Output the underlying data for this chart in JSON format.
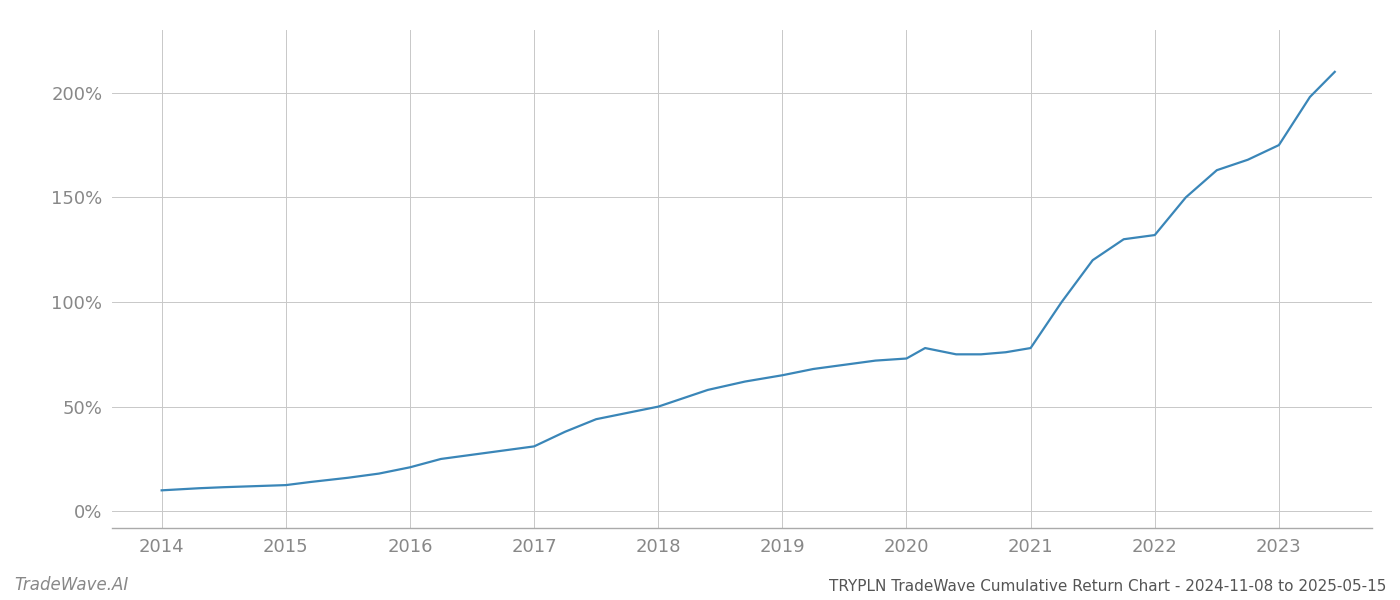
{
  "title": "TRYPLN TradeWave Cumulative Return Chart - 2024-11-08 to 2025-05-15",
  "watermark": "TradeWave.AI",
  "line_color": "#3a86b8",
  "background_color": "#ffffff",
  "grid_color": "#c8c8c8",
  "x_years": [
    2014,
    2015,
    2016,
    2017,
    2018,
    2019,
    2020,
    2021,
    2022,
    2023
  ],
  "x_data": [
    2014.0,
    2014.15,
    2014.3,
    2014.5,
    2014.75,
    2015.0,
    2015.2,
    2015.5,
    2015.75,
    2016.0,
    2016.25,
    2016.5,
    2016.75,
    2017.0,
    2017.25,
    2017.5,
    2017.75,
    2018.0,
    2018.2,
    2018.4,
    2018.7,
    2019.0,
    2019.25,
    2019.5,
    2019.75,
    2020.0,
    2020.15,
    2020.4,
    2020.6,
    2020.8,
    2021.0,
    2021.25,
    2021.5,
    2021.75,
    2022.0,
    2022.25,
    2022.5,
    2022.75,
    2023.0,
    2023.25,
    2023.45
  ],
  "y_data": [
    10,
    10.5,
    11,
    11.5,
    12,
    12.5,
    14,
    16,
    18,
    21,
    25,
    27,
    29,
    31,
    38,
    44,
    47,
    50,
    54,
    58,
    62,
    65,
    68,
    70,
    72,
    73,
    78,
    75,
    75,
    76,
    78,
    100,
    120,
    130,
    132,
    150,
    163,
    168,
    175,
    198,
    210
  ],
  "yticks": [
    0,
    50,
    100,
    150,
    200
  ],
  "ylim": [
    -8,
    230
  ],
  "xlim": [
    2013.6,
    2023.75
  ],
  "title_fontsize": 11,
  "watermark_fontsize": 12,
  "tick_fontsize": 13,
  "title_color": "#555555",
  "watermark_color": "#888888",
  "tick_color": "#888888",
  "spine_color": "#aaaaaa",
  "line_width": 1.6
}
